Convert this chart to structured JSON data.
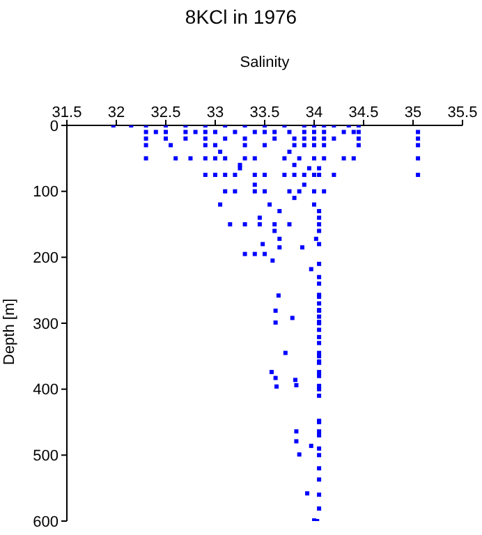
{
  "chart_data": {
    "type": "scatter",
    "title": "8KCl in 1976",
    "xlabel": "Salinity",
    "ylabel": "Depth [m]",
    "xlim": [
      31.5,
      35.5
    ],
    "xticks": [
      31.5,
      32,
      32.5,
      33,
      33.5,
      34,
      34.5,
      35,
      35.5
    ],
    "ylim": [
      600,
      0
    ],
    "yticks": [
      0,
      100,
      200,
      300,
      400,
      500,
      600
    ],
    "marker": "square",
    "series": [
      {
        "color": "#0000ff",
        "x": [
          31.97,
          32.15,
          32.3,
          32.5,
          32.7,
          32.9,
          33.1,
          33.3,
          33.5,
          33.7,
          33.9,
          34.0,
          34.1,
          34.2,
          34.35,
          34.45,
          32.3,
          32.4,
          32.5,
          32.7,
          32.8,
          32.9,
          33.0,
          33.2,
          33.4,
          33.5,
          33.6,
          33.75,
          33.9,
          34.0,
          34.1,
          34.3,
          34.4,
          34.45,
          35.05,
          32.3,
          32.5,
          32.7,
          32.9,
          33.1,
          33.3,
          33.6,
          33.8,
          33.9,
          34.0,
          34.1,
          34.2,
          34.45,
          35.05,
          32.3,
          32.55,
          32.9,
          33.0,
          33.3,
          33.5,
          33.8,
          33.9,
          34.0,
          34.1,
          34.45,
          35.05,
          33.05,
          33.75,
          32.3,
          32.6,
          32.75,
          32.9,
          33.0,
          33.1,
          33.3,
          33.4,
          33.7,
          33.85,
          34.0,
          34.1,
          34.3,
          34.4,
          35.05,
          33.25,
          33.8,
          33.25,
          33.95,
          34.05,
          32.9,
          33.0,
          33.1,
          33.2,
          33.4,
          33.5,
          33.7,
          33.8,
          33.9,
          34.0,
          34.05,
          34.2,
          35.05,
          33.4,
          33.9,
          33.1,
          33.2,
          33.4,
          33.5,
          33.75,
          33.85,
          34.0,
          34.1,
          33.8,
          33.05,
          33.55,
          34.0,
          33.65,
          34.05,
          33.45,
          34.05,
          33.15,
          33.3,
          33.45,
          33.6,
          33.75,
          34.05,
          33.6,
          34.05,
          33.65,
          34.02,
          33.48,
          33.65,
          34.05,
          33.3,
          33.4,
          33.5,
          33.88,
          33.58,
          33.97,
          33.64,
          34.05,
          33.61,
          34.05,
          33.78,
          33.61,
          34.05,
          34.05,
          33.71,
          34.05,
          34.05,
          33.57,
          34.05,
          33.61,
          33.81,
          33.62,
          33.82,
          34.05,
          34.05,
          34.05,
          33.82,
          33.82,
          33.97,
          33.85,
          34.05,
          34.05,
          33.93,
          34.05,
          34.05,
          34.0,
          34.03,
          34.05,
          34.05,
          34.05,
          34.05,
          34.05,
          34.05,
          34.05,
          34.05,
          34.05,
          34.05,
          34.05,
          34.05,
          34.05,
          34.05,
          34.05,
          34.05,
          34.05,
          34.05,
          34.05
        ],
        "values": [
          0,
          0,
          0,
          0,
          0,
          0,
          0,
          0,
          0,
          0,
          0,
          0,
          0,
          0,
          0,
          0,
          10,
          10,
          10,
          10,
          10,
          10,
          10,
          10,
          10,
          10,
          10,
          10,
          10,
          10,
          10,
          10,
          10,
          10,
          10,
          20,
          20,
          20,
          20,
          20,
          20,
          20,
          20,
          20,
          20,
          20,
          20,
          20,
          20,
          30,
          30,
          30,
          30,
          30,
          30,
          30,
          30,
          30,
          30,
          30,
          30,
          40,
          40,
          50,
          50,
          50,
          50,
          50,
          50,
          50,
          50,
          50,
          50,
          50,
          50,
          50,
          50,
          50,
          60,
          60,
          65,
          65,
          65,
          75,
          75,
          75,
          75,
          75,
          75,
          75,
          75,
          75,
          75,
          75,
          75,
          75,
          90,
          90,
          100,
          100,
          100,
          100,
          100,
          100,
          100,
          100,
          110,
          120,
          120,
          120,
          130,
          130,
          140,
          140,
          150,
          150,
          150,
          150,
          150,
          150,
          160,
          160,
          172,
          172,
          180,
          185,
          180,
          195,
          195,
          195,
          185,
          205,
          218,
          258,
          257,
          281,
          281,
          292,
          299,
          298,
          321,
          345,
          345,
          358,
          374,
          374,
          383,
          386,
          396,
          394,
          395,
          448,
          464,
          464,
          479,
          486,
          499,
          500,
          537,
          558,
          560,
          581,
          599,
          600,
          210,
          230,
          240,
          260,
          270,
          280,
          290,
          300,
          310,
          330,
          350,
          360,
          380,
          400,
          410,
          450,
          470,
          490,
          520
        ]
      }
    ]
  }
}
